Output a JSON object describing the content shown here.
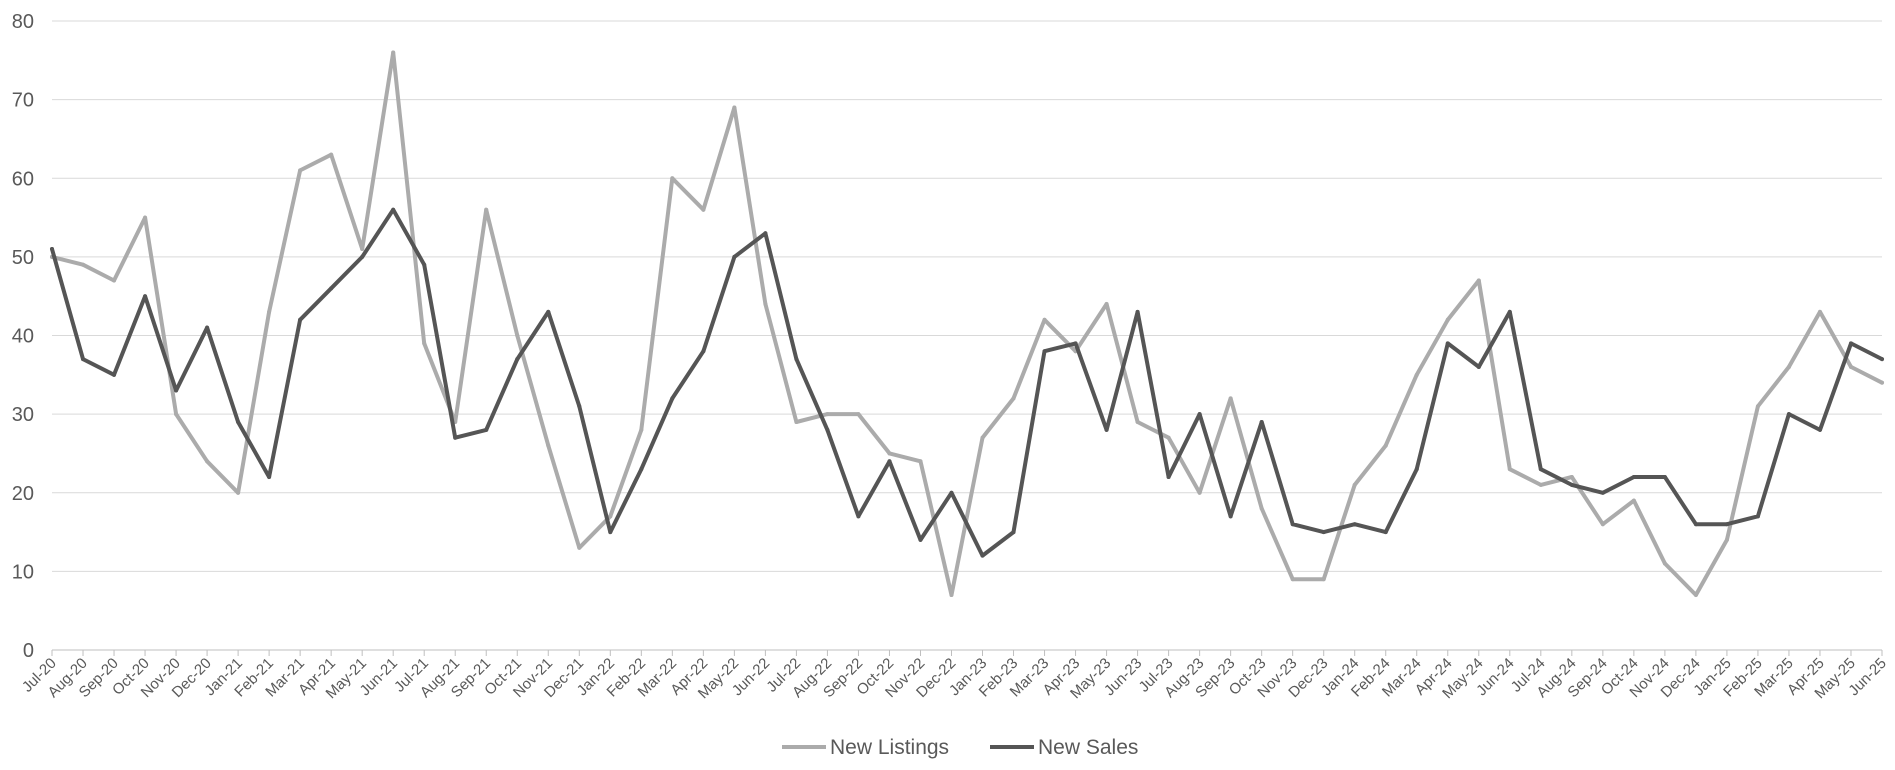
{
  "chart_data": {
    "type": "line",
    "title": "",
    "xlabel": "",
    "ylabel": "",
    "ylim": [
      0,
      80
    ],
    "yticks": [
      0,
      10,
      20,
      30,
      40,
      50,
      60,
      70,
      80
    ],
    "grid": "horizontal",
    "legend_position": "bottom-center",
    "categories": [
      "Jul-20",
      "Aug-20",
      "Sep-20",
      "Oct-20",
      "Nov-20",
      "Dec-20",
      "Jan-21",
      "Feb-21",
      "Mar-21",
      "Apr-21",
      "May-21",
      "Jun-21",
      "Jul-21",
      "Aug-21",
      "Sep-21",
      "Oct-21",
      "Nov-21",
      "Dec-21",
      "Jan-22",
      "Feb-22",
      "Mar-22",
      "Apr-22",
      "May-22",
      "Jun-22",
      "Jul-22",
      "Aug-22",
      "Sep-22",
      "Oct-22",
      "Nov-22",
      "Dec-22",
      "Jan-23",
      "Feb-23",
      "Mar-23",
      "Apr-23",
      "May-23",
      "Jun-23",
      "Jul-23",
      "Aug-23",
      "Sep-23",
      "Oct-23",
      "Nov-23",
      "Dec-23",
      "Jan-24",
      "Feb-24",
      "Mar-24",
      "Apr-24",
      "May-24",
      "Jun-24",
      "Jul-24",
      "Aug-24",
      "Sep-24",
      "Oct-24",
      "Nov-24",
      "Dec-24",
      "Jan-25",
      "Feb-25",
      "Mar-25",
      "Apr-25",
      "May-25",
      "Jun-25"
    ],
    "series": [
      {
        "name": "New Listings",
        "color": "#ababab",
        "values": [
          50,
          49,
          47,
          55,
          30,
          24,
          20,
          43,
          61,
          63,
          51,
          76,
          39,
          29,
          56,
          40,
          26,
          13,
          17,
          28,
          60,
          56,
          69,
          44,
          29,
          30,
          30,
          25,
          24,
          7,
          27,
          32,
          42,
          38,
          44,
          29,
          27,
          20,
          32,
          18,
          9,
          9,
          21,
          26,
          35,
          42,
          47,
          23,
          21,
          22,
          16,
          19,
          11,
          7,
          14,
          31,
          36,
          43,
          36,
          34
        ]
      },
      {
        "name": "New Sales",
        "color": "#555555",
        "values": [
          51,
          37,
          35,
          45,
          33,
          41,
          29,
          22,
          42,
          46,
          50,
          56,
          49,
          27,
          28,
          37,
          43,
          31,
          15,
          23,
          32,
          38,
          50,
          53,
          37,
          28,
          17,
          24,
          14,
          20,
          12,
          15,
          38,
          39,
          28,
          43,
          22,
          30,
          17,
          29,
          16,
          15,
          16,
          15,
          23,
          39,
          36,
          43,
          23,
          21,
          20,
          22,
          22,
          16,
          16,
          17,
          30,
          28,
          39,
          37
        ]
      }
    ]
  }
}
